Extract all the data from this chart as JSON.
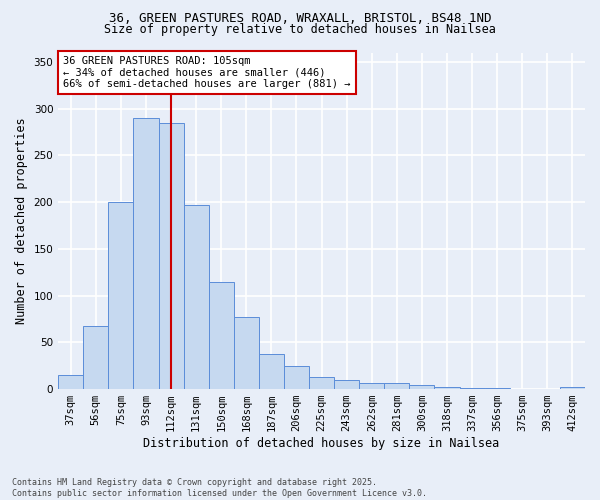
{
  "title_line1": "36, GREEN PASTURES ROAD, WRAXALL, BRISTOL, BS48 1ND",
  "title_line2": "Size of property relative to detached houses in Nailsea",
  "xlabel": "Distribution of detached houses by size in Nailsea",
  "ylabel": "Number of detached properties",
  "categories": [
    "37sqm",
    "56sqm",
    "75sqm",
    "93sqm",
    "112sqm",
    "131sqm",
    "150sqm",
    "168sqm",
    "187sqm",
    "206sqm",
    "225sqm",
    "243sqm",
    "262sqm",
    "281sqm",
    "300sqm",
    "318sqm",
    "337sqm",
    "356sqm",
    "375sqm",
    "393sqm",
    "412sqm"
  ],
  "bar_heights": [
    15,
    67,
    200,
    290,
    285,
    197,
    115,
    77,
    38,
    25,
    13,
    10,
    6,
    6,
    4,
    2,
    1,
    1,
    0,
    0,
    2
  ],
  "bar_color": "#c6d9f0",
  "bar_edge_color": "#5b8dd9",
  "vline_x": 4.0,
  "vline_color": "#cc0000",
  "ylim": [
    0,
    360
  ],
  "yticks": [
    0,
    50,
    100,
    150,
    200,
    250,
    300,
    350
  ],
  "annotation_text": "36 GREEN PASTURES ROAD: 105sqm\n← 34% of detached houses are smaller (446)\n66% of semi-detached houses are larger (881) →",
  "annotation_box_color": "#ffffff",
  "annotation_box_edge": "#cc0000",
  "footer": "Contains HM Land Registry data © Crown copyright and database right 2025.\nContains public sector information licensed under the Open Government Licence v3.0.",
  "background_color": "#e8eef8",
  "grid_color": "#ffffff",
  "title_fontsize": 9,
  "subtitle_fontsize": 8.5,
  "xlabel_fontsize": 8.5,
  "ylabel_fontsize": 8.5,
  "tick_fontsize": 7.5,
  "annot_fontsize": 7.5,
  "footer_fontsize": 6.0
}
